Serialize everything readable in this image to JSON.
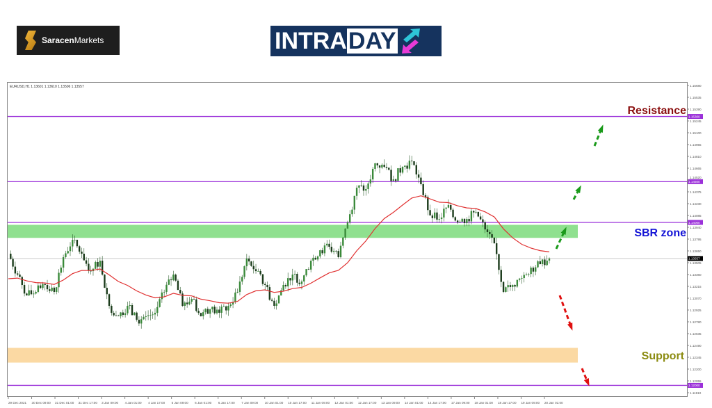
{
  "logos": {
    "saracen": "SaracenMarkets",
    "saracen_bold": "Saracen",
    "saracen_light": "Markets",
    "intraday_a": "INTRA",
    "intraday_b": "DAY"
  },
  "chart_data": {
    "type": "candlestick",
    "symbol_header": "EURUSD,H1  1.13601 1.13610 1.13506 1.13557",
    "ylim": [
      1.1191,
      1.1568
    ],
    "y_ticks": [
      "1.15680",
      "1.15535",
      "1.15390",
      "1.15245",
      "1.15100",
      "1.14955",
      "1.14810",
      "1.14665",
      "1.14520",
      "1.14375",
      "1.14230",
      "1.14085",
      "1.13940",
      "1.13795",
      "1.13650",
      "1.13505",
      "1.13360",
      "1.13215",
      "1.13070",
      "1.12925",
      "1.12780",
      "1.12635",
      "1.12490",
      "1.12345",
      "1.12200",
      "1.12055",
      "1.11910"
    ],
    "x_ticks": [
      "29 Dec 2021",
      "30 Dec 09:00",
      "31 Dec 01:00",
      "31 Dec 17:00",
      "3 Jan 09:00",
      "4 Jan 01:00",
      "4 Jan 17:00",
      "5 Jan 09:00",
      "6 Jan 01:00",
      "6 Jan 17:00",
      "7 Jan 09:00",
      "10 Jan 01:00",
      "10 Jan 17:00",
      "11 Jan 09:00",
      "12 Jan 01:00",
      "12 Jan 17:00",
      "13 Jan 09:00",
      "14 Jan 01:00",
      "14 Jan 17:00",
      "17 Jan 09:00",
      "18 Jan 01:00",
      "18 Jan 17:00",
      "19 Jan 09:00",
      "20 Jan 01:00"
    ],
    "closes": [
      1.13616,
      1.1336,
      1.13104,
      1.13147,
      1.13232,
      1.13147,
      1.13573,
      1.13786,
      1.13616,
      1.13402,
      1.1353,
      1.12976,
      1.12848,
      1.12976,
      1.12805,
      1.12848,
      1.12891,
      1.13147,
      1.1336,
      1.12976,
      1.13061,
      1.12848,
      1.12933,
      1.12891,
      1.12976,
      1.13147,
      1.13556,
      1.13402,
      1.13232,
      1.12976,
      1.13232,
      1.1336,
      1.13275,
      1.1353,
      1.13658,
      1.13701,
      1.13573,
      1.14,
      1.14426,
      1.14409,
      1.14725,
      1.14682,
      1.14528,
      1.14682,
      1.1475,
      1.14469,
      1.14085,
      1.14042,
      1.14213,
      1.14,
      1.14042,
      1.14128,
      1.13914,
      1.13744,
      1.13147,
      1.13232,
      1.13317,
      1.13445,
      1.13488,
      1.13557
    ],
    "current_price": {
      "label": "1.13557",
      "value": 1.13557,
      "color": "#000000"
    },
    "levels": [
      {
        "label": "1.15300",
        "value": 1.153,
        "color": "#9b30d9"
      },
      {
        "label": "1.14500",
        "value": 1.145,
        "color": "#9b30d9"
      },
      {
        "label": "1.14000",
        "value": 1.14,
        "color": "#9b30d9"
      },
      {
        "label": "1.12000",
        "value": 1.12,
        "color": "#9b30d9"
      }
    ],
    "zones": [
      {
        "name": "SBR zone",
        "from": 1.1381,
        "to": 1.1397,
        "color": "#8fe08f"
      },
      {
        "name": "Support",
        "from": 1.1228,
        "to": 1.1246,
        "color": "#fbd9a3"
      }
    ],
    "annotations": [
      {
        "text": "Resistance",
        "color": "#8b1010"
      },
      {
        "text": "SBR zone",
        "color": "#1515d6"
      },
      {
        "text": "Support",
        "color": "#8b8b10"
      }
    ],
    "moving_average_color": "#e03030",
    "bull_arrow_color": "#1a9a1a",
    "bear_arrow_color": "#e01010"
  }
}
